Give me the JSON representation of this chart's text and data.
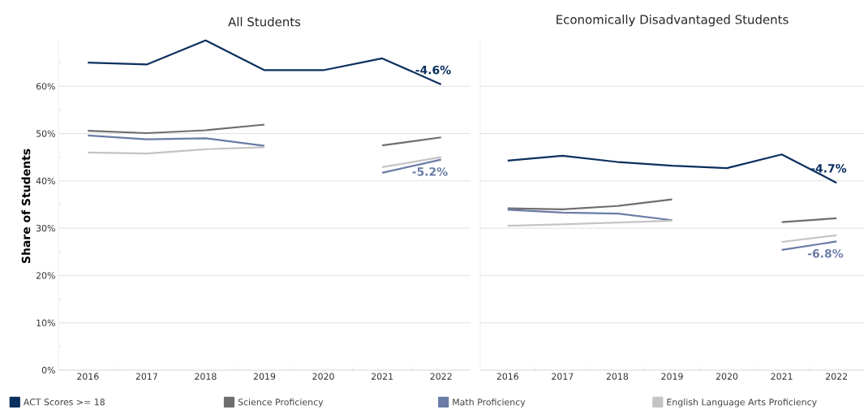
{
  "chart_data": [
    {
      "type": "line",
      "title": "All Students",
      "ylabel": "Share of Students",
      "categories": [
        "2016",
        "2017",
        "2018",
        "2019",
        "2020",
        "2021",
        "2022"
      ],
      "series": [
        {
          "name": "ACT Scores >= 18",
          "color": "#0b2f5e",
          "values": [
            65.0,
            64.6,
            69.7,
            63.4,
            63.4,
            65.9,
            60.4
          ]
        },
        {
          "name": "Science Proficiency",
          "color": "#6e6e6e",
          "values": [
            50.6,
            50.1,
            50.7,
            51.9,
            null,
            47.5,
            49.2
          ]
        },
        {
          "name": "Math Proficiency",
          "color": "#6a7ba6",
          "values": [
            49.6,
            48.8,
            49.0,
            47.4,
            null,
            41.7,
            44.5
          ]
        },
        {
          "name": "English Language Arts Proficiency",
          "color": "#c4c4c4",
          "values": [
            46.0,
            45.8,
            46.7,
            47.1,
            null,
            42.9,
            45.0
          ]
        }
      ],
      "ylim": [
        0,
        70
      ],
      "yticks": [
        {
          "value": 0,
          "label": "0%"
        },
        {
          "value": 5,
          "label": null
        },
        {
          "value": 10,
          "label": "10%"
        },
        {
          "value": 15,
          "label": null
        },
        {
          "value": 20,
          "label": "20%"
        },
        {
          "value": 25,
          "label": null
        },
        {
          "value": 30,
          "label": "30%"
        },
        {
          "value": 35,
          "label": null
        },
        {
          "value": 40,
          "label": "40%"
        },
        {
          "value": 45,
          "label": null
        },
        {
          "value": 50,
          "label": "50%"
        },
        {
          "value": 55,
          "label": null
        },
        {
          "value": 60,
          "label": "60%"
        },
        {
          "value": 65,
          "label": null
        }
      ],
      "grid": "y",
      "legend": "bottom",
      "annotations": [
        {
          "text": "-4.6%",
          "x": "2022",
          "y": 60.4
        },
        {
          "text": "-5.2%",
          "x": "2022",
          "y": 44.5
        }
      ]
    },
    {
      "type": "line",
      "title": "Economically Disadvantaged Students",
      "categories": [
        "2016",
        "2017",
        "2018",
        "2019",
        "2020",
        "2021",
        "2022"
      ],
      "series": [
        {
          "color": "#0b2f5e",
          "values": [
            44.3,
            45.3,
            44.0,
            43.2,
            42.7,
            45.6,
            39.6
          ]
        },
        {
          "color": "#6e6e6e",
          "values": [
            34.2,
            34.0,
            34.7,
            36.1,
            null,
            31.3,
            32.1
          ]
        },
        {
          "color": "#6a7ba6",
          "values": [
            33.9,
            33.3,
            33.1,
            31.7,
            null,
            25.4,
            27.2
          ]
        },
        {
          "color": "#c4c4c4",
          "values": [
            30.5,
            30.8,
            31.2,
            31.6,
            null,
            27.1,
            28.5
          ]
        }
      ],
      "ylim": [
        0,
        70
      ],
      "yticks": [
        0,
        10,
        20,
        30,
        40,
        50,
        60
      ],
      "grid": "y",
      "tick_labels": "x",
      "annotations": [
        {
          "text": "-4.7%",
          "x": "2022",
          "y": 39.6
        },
        {
          "text": "-6.8%",
          "x": "2022",
          "y": 27.2
        }
      ]
    }
  ]
}
